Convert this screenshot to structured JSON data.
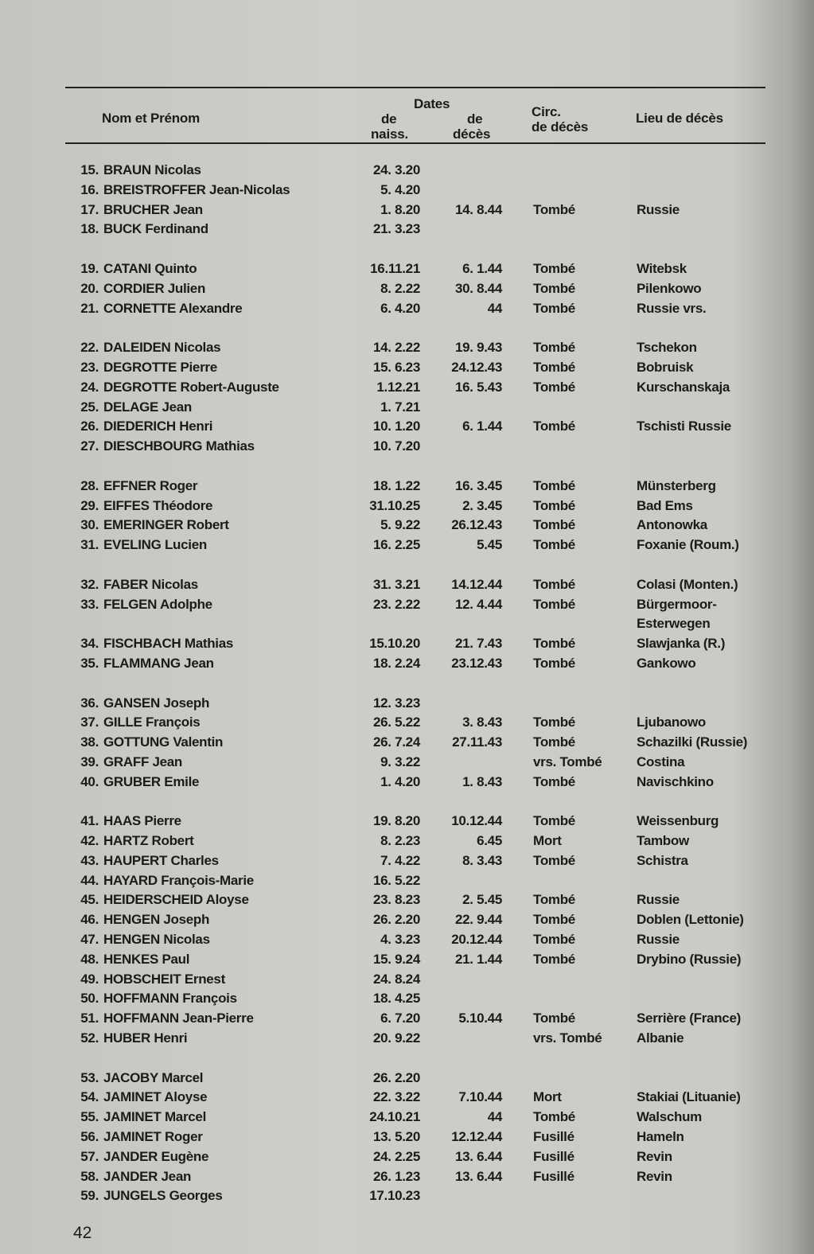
{
  "header": {
    "name": "Nom et Prénom",
    "dates": "Dates",
    "birth_1": "de",
    "birth_2": "naiss.",
    "death_1": "de",
    "death_2": "décès",
    "circ_1": "Circ.",
    "circ_2": "de décès",
    "place": "Lieu de décès"
  },
  "groups": [
    [
      {
        "num": "15.",
        "name": "BRAUN Nicolas",
        "birth": "24. 3.20",
        "death": "",
        "circ": "",
        "place": ""
      },
      {
        "num": "16.",
        "name": "BREISTROFFER Jean-Nicolas",
        "birth": "5. 4.20",
        "death": "",
        "circ": "",
        "place": ""
      },
      {
        "num": "17.",
        "name": "BRUCHER Jean",
        "birth": "1. 8.20",
        "death": "14. 8.44",
        "circ": "Tombé",
        "place": "Russie"
      },
      {
        "num": "18.",
        "name": "BUCK Ferdinand",
        "birth": "21. 3.23",
        "death": "",
        "circ": "",
        "place": ""
      }
    ],
    [
      {
        "num": "19.",
        "name": "CATANI Quinto",
        "birth": "16.11.21",
        "death": "6. 1.44",
        "circ": "Tombé",
        "place": "Witebsk"
      },
      {
        "num": "20.",
        "name": "CORDIER Julien",
        "birth": "8. 2.22",
        "death": "30. 8.44",
        "circ": "Tombé",
        "place": "Pilenkowo"
      },
      {
        "num": "21.",
        "name": "CORNETTE Alexandre",
        "birth": "6. 4.20",
        "death": "44",
        "circ": "Tombé",
        "place": "Russie vrs."
      }
    ],
    [
      {
        "num": "22.",
        "name": "DALEIDEN Nicolas",
        "birth": "14. 2.22",
        "death": "19. 9.43",
        "circ": "Tombé",
        "place": "Tschekon"
      },
      {
        "num": "23.",
        "name": "DEGROTTE Pierre",
        "birth": "15. 6.23",
        "death": "24.12.43",
        "circ": "Tombé",
        "place": "Bobruisk"
      },
      {
        "num": "24.",
        "name": "DEGROTTE Robert-Auguste",
        "birth": "1.12.21",
        "death": "16. 5.43",
        "circ": "Tombé",
        "place": "Kurschanskaja"
      },
      {
        "num": "25.",
        "name": "DELAGE Jean",
        "birth": "1. 7.21",
        "death": "",
        "circ": "",
        "place": ""
      },
      {
        "num": "26.",
        "name": "DIEDERICH Henri",
        "birth": "10. 1.20",
        "death": "6. 1.44",
        "circ": "Tombé",
        "place": "Tschisti Russie"
      },
      {
        "num": "27.",
        "name": "DIESCHBOURG Mathias",
        "birth": "10. 7.20",
        "death": "",
        "circ": "",
        "place": ""
      }
    ],
    [
      {
        "num": "28.",
        "name": "EFFNER Roger",
        "birth": "18. 1.22",
        "death": "16. 3.45",
        "circ": "Tombé",
        "place": "Münsterberg"
      },
      {
        "num": "29.",
        "name": "EIFFES Théodore",
        "birth": "31.10.25",
        "death": "2. 3.45",
        "circ": "Tombé",
        "place": "Bad Ems"
      },
      {
        "num": "30.",
        "name": "EMERINGER Robert",
        "birth": "5. 9.22",
        "death": "26.12.43",
        "circ": "Tombé",
        "place": "Antonowka"
      },
      {
        "num": "31.",
        "name": "EVELING Lucien",
        "birth": "16. 2.25",
        "death": "5.45",
        "circ": "Tombé",
        "place": "Foxanie (Roum.)"
      }
    ],
    [
      {
        "num": "32.",
        "name": "FABER Nicolas",
        "birth": "31. 3.21",
        "death": "14.12.44",
        "circ": "Tombé",
        "place": "Colasi (Monten.)"
      },
      {
        "num": "33.",
        "name": "FELGEN Adolphe",
        "birth": "23. 2.22",
        "death": "12. 4.44",
        "circ": "Tombé",
        "place": "Bürgermoor-"
      },
      {
        "num": "",
        "name": "",
        "birth": "",
        "death": "",
        "circ": "",
        "place": "Esterwegen"
      },
      {
        "num": "34.",
        "name": "FISCHBACH Mathias",
        "birth": "15.10.20",
        "death": "21. 7.43",
        "circ": "Tombé",
        "place": "Slawjanka (R.)"
      },
      {
        "num": "35.",
        "name": "FLAMMANG Jean",
        "birth": "18. 2.24",
        "death": "23.12.43",
        "circ": "Tombé",
        "place": "Gankowo"
      }
    ],
    [
      {
        "num": "36.",
        "name": "GANSEN Joseph",
        "birth": "12. 3.23",
        "death": "",
        "circ": "",
        "place": ""
      },
      {
        "num": "37.",
        "name": "GILLE François",
        "birth": "26. 5.22",
        "death": "3. 8.43",
        "circ": "Tombé",
        "place": "Ljubanowo"
      },
      {
        "num": "38.",
        "name": "GOTTUNG Valentin",
        "birth": "26. 7.24",
        "death": "27.11.43",
        "circ": "Tombé",
        "place": "Schazilki (Russie)"
      },
      {
        "num": "39.",
        "name": "GRAFF Jean",
        "birth": "9. 3.22",
        "death": "",
        "circ": "vrs. Tombé",
        "place": "Costina"
      },
      {
        "num": "40.",
        "name": "GRUBER Emile",
        "birth": "1. 4.20",
        "death": "1. 8.43",
        "circ": "Tombé",
        "place": "Navischkino"
      }
    ],
    [
      {
        "num": "41.",
        "name": "HAAS Pierre",
        "birth": "19. 8.20",
        "death": "10.12.44",
        "circ": "Tombé",
        "place": "Weissenburg"
      },
      {
        "num": "42.",
        "name": "HARTZ Robert",
        "birth": "8. 2.23",
        "death": "6.45",
        "circ": "Mort",
        "place": "Tambow"
      },
      {
        "num": "43.",
        "name": "HAUPERT Charles",
        "birth": "7. 4.22",
        "death": "8. 3.43",
        "circ": "Tombé",
        "place": "Schistra"
      },
      {
        "num": "44.",
        "name": "HAYARD François-Marie",
        "birth": "16. 5.22",
        "death": "",
        "circ": "",
        "place": ""
      },
      {
        "num": "45.",
        "name": "HEIDERSCHEID Aloyse",
        "birth": "23. 8.23",
        "death": "2. 5.45",
        "circ": "Tombé",
        "place": "Russie"
      },
      {
        "num": "46.",
        "name": "HENGEN Joseph",
        "birth": "26. 2.20",
        "death": "22. 9.44",
        "circ": "Tombé",
        "place": "Doblen (Lettonie)"
      },
      {
        "num": "47.",
        "name": "HENGEN Nicolas",
        "birth": "4. 3.23",
        "death": "20.12.44",
        "circ": "Tombé",
        "place": "Russie"
      },
      {
        "num": "48.",
        "name": "HENKES Paul",
        "birth": "15. 9.24",
        "death": "21. 1.44",
        "circ": "Tombé",
        "place": "Drybino (Russie)"
      },
      {
        "num": "49.",
        "name": "HOBSCHEIT Ernest",
        "birth": "24. 8.24",
        "death": "",
        "circ": "",
        "place": ""
      },
      {
        "num": "50.",
        "name": "HOFFMANN François",
        "birth": "18. 4.25",
        "death": "",
        "circ": "",
        "place": ""
      },
      {
        "num": "51.",
        "name": "HOFFMANN Jean-Pierre",
        "birth": "6. 7.20",
        "death": "5.10.44",
        "circ": "Tombé",
        "place": "Serrière (France)"
      },
      {
        "num": "52.",
        "name": "HUBER Henri",
        "birth": "20. 9.22",
        "death": "",
        "circ": "vrs. Tombé",
        "place": "Albanie"
      }
    ],
    [
      {
        "num": "53.",
        "name": "JACOBY Marcel",
        "birth": "26. 2.20",
        "death": "",
        "circ": "",
        "place": ""
      },
      {
        "num": "54.",
        "name": "JAMINET Aloyse",
        "birth": "22. 3.22",
        "death": "7.10.44",
        "circ": "Mort",
        "place": "Stakiai (Lituanie)"
      },
      {
        "num": "55.",
        "name": "JAMINET Marcel",
        "birth": "24.10.21",
        "death": "44",
        "circ": "Tombé",
        "place": "Walschum"
      },
      {
        "num": "56.",
        "name": "JAMINET Roger",
        "birth": "13. 5.20",
        "death": "12.12.44",
        "circ": "Fusillé",
        "place": "Hameln"
      },
      {
        "num": "57.",
        "name": "JANDER Eugène",
        "birth": "24. 2.25",
        "death": "13. 6.44",
        "circ": "Fusillé",
        "place": "Revin"
      },
      {
        "num": "58.",
        "name": "JANDER Jean",
        "birth": "26. 1.23",
        "death": "13. 6.44",
        "circ": "Fusillé",
        "place": "Revin"
      },
      {
        "num": "59.",
        "name": "JUNGELS Georges",
        "birth": "17.10.23",
        "death": "",
        "circ": "",
        "place": ""
      }
    ]
  ],
  "page_number": "42"
}
